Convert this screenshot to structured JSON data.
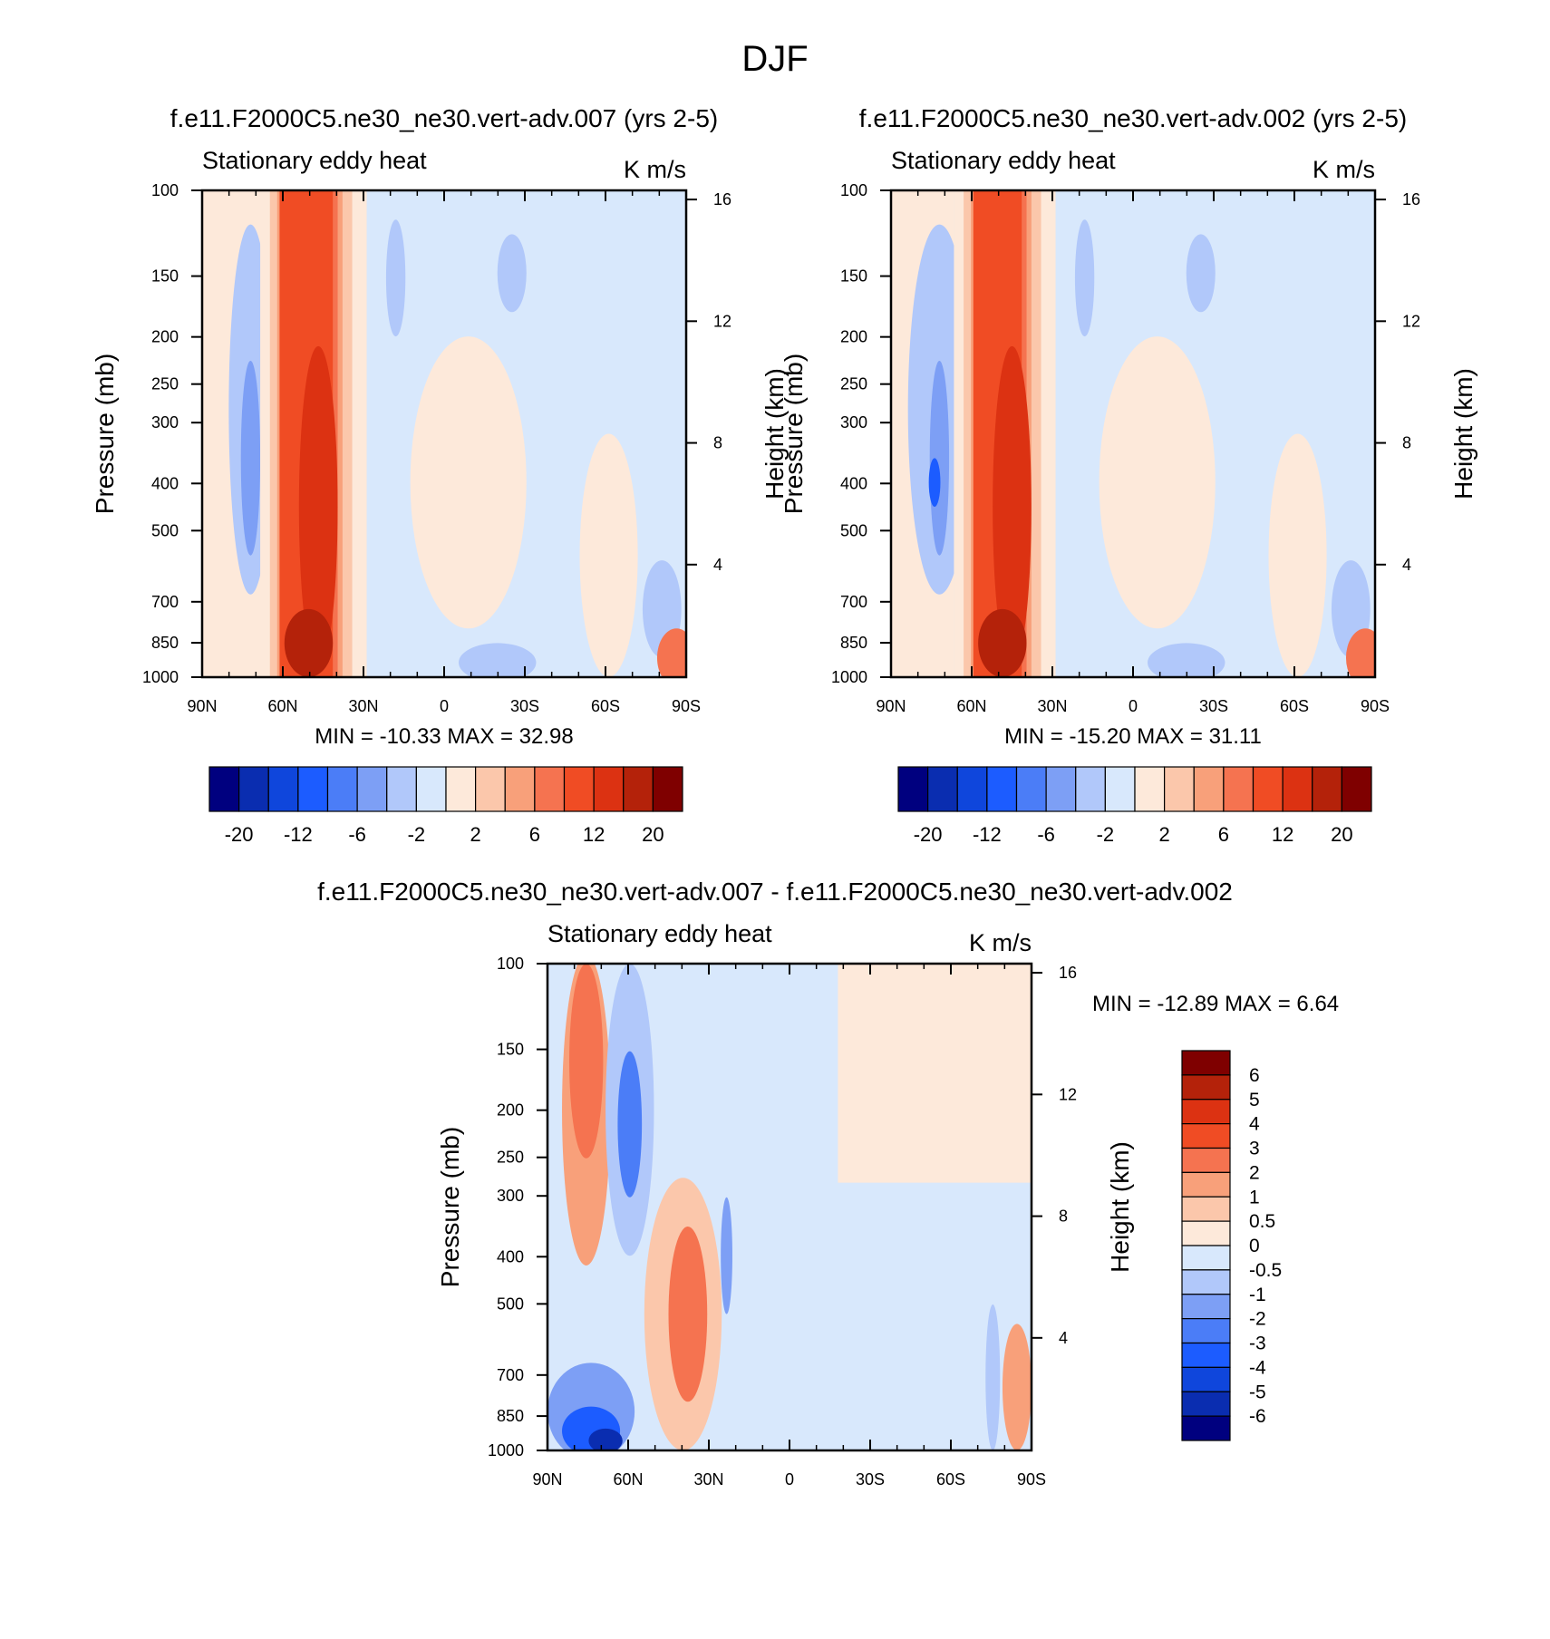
{
  "figure": {
    "title": "DJF"
  },
  "colors": {
    "main": [
      "#00007f",
      "#0a2db0",
      "#0f46dc",
      "#1c5cff",
      "#4b7df7",
      "#7d9ff5",
      "#b1c8fa",
      "#d8e8fc",
      "#fde9da",
      "#fbc7ab",
      "#f8a07a",
      "#f57350",
      "#f04c24",
      "#dc3212",
      "#b4220a",
      "#7f0000"
    ],
    "diff": [
      "#00007f",
      "#0a2db0",
      "#0f46dc",
      "#1c5cff",
      "#4b7df7",
      "#7d9ff5",
      "#b1c8fa",
      "#d8e8fc",
      "#fde9da",
      "#fbc7ab",
      "#f8a07a",
      "#f57350",
      "#f04c24",
      "#dc3212",
      "#b4220a",
      "#7f0000"
    ]
  },
  "chart_data": [
    {
      "type": "heatmap",
      "title": "f.e11.F2000C5.ne30_ne30.vert-adv.007 (yrs 2-5)",
      "subtitle_left": "Stationary eddy heat",
      "subtitle_right": "K m/s",
      "ylabel": "Pressure (mb)",
      "ylabel_right": "Height (km)",
      "x_ticks": [
        "90N",
        "60N",
        "30N",
        "0",
        "30S",
        "60S",
        "90S"
      ],
      "y_ticks": [
        "100",
        "150",
        "200",
        "250",
        "300",
        "400",
        "500",
        "700",
        "850",
        "1000"
      ],
      "y2_ticks": [
        "16",
        "12",
        "8",
        "4"
      ],
      "stats": "MIN = -10.33  MAX =  32.98",
      "colorbar_labels": [
        "-20",
        "-12",
        "-6",
        "-2",
        "2",
        "6",
        "12",
        "20"
      ]
    },
    {
      "type": "heatmap",
      "title": "f.e11.F2000C5.ne30_ne30.vert-adv.002 (yrs 2-5)",
      "subtitle_left": "Stationary eddy heat",
      "subtitle_right": "K m/s",
      "ylabel": "Pressure (mb)",
      "ylabel_right": "Height (km)",
      "x_ticks": [
        "90N",
        "60N",
        "30N",
        "0",
        "30S",
        "60S",
        "90S"
      ],
      "y_ticks": [
        "100",
        "150",
        "200",
        "250",
        "300",
        "400",
        "500",
        "700",
        "850",
        "1000"
      ],
      "y2_ticks": [
        "16",
        "12",
        "8",
        "4"
      ],
      "stats": "MIN = -15.20  MAX =  31.11",
      "colorbar_labels": [
        "-20",
        "-12",
        "-6",
        "-2",
        "2",
        "6",
        "12",
        "20"
      ]
    },
    {
      "type": "heatmap",
      "title": "f.e11.F2000C5.ne30_ne30.vert-adv.007 - f.e11.F2000C5.ne30_ne30.vert-adv.002",
      "subtitle_left": "Stationary eddy heat",
      "subtitle_right": "K m/s",
      "ylabel": "Pressure (mb)",
      "ylabel_right": "Height (km)",
      "x_ticks": [
        "90N",
        "60N",
        "30N",
        "0",
        "30S",
        "60S",
        "90S"
      ],
      "y_ticks": [
        "100",
        "150",
        "200",
        "250",
        "300",
        "400",
        "500",
        "700",
        "850",
        "1000"
      ],
      "y2_ticks": [
        "16",
        "12",
        "8",
        "4"
      ],
      "stats": "MIN = -12.89  MAX =   6.64",
      "colorbar_labels": [
        "6",
        "5",
        "4",
        "3",
        "2",
        "1",
        "0.5",
        "0",
        "-0.5",
        "-1",
        "-2",
        "-3",
        "-4",
        "-5",
        "-6"
      ]
    }
  ]
}
